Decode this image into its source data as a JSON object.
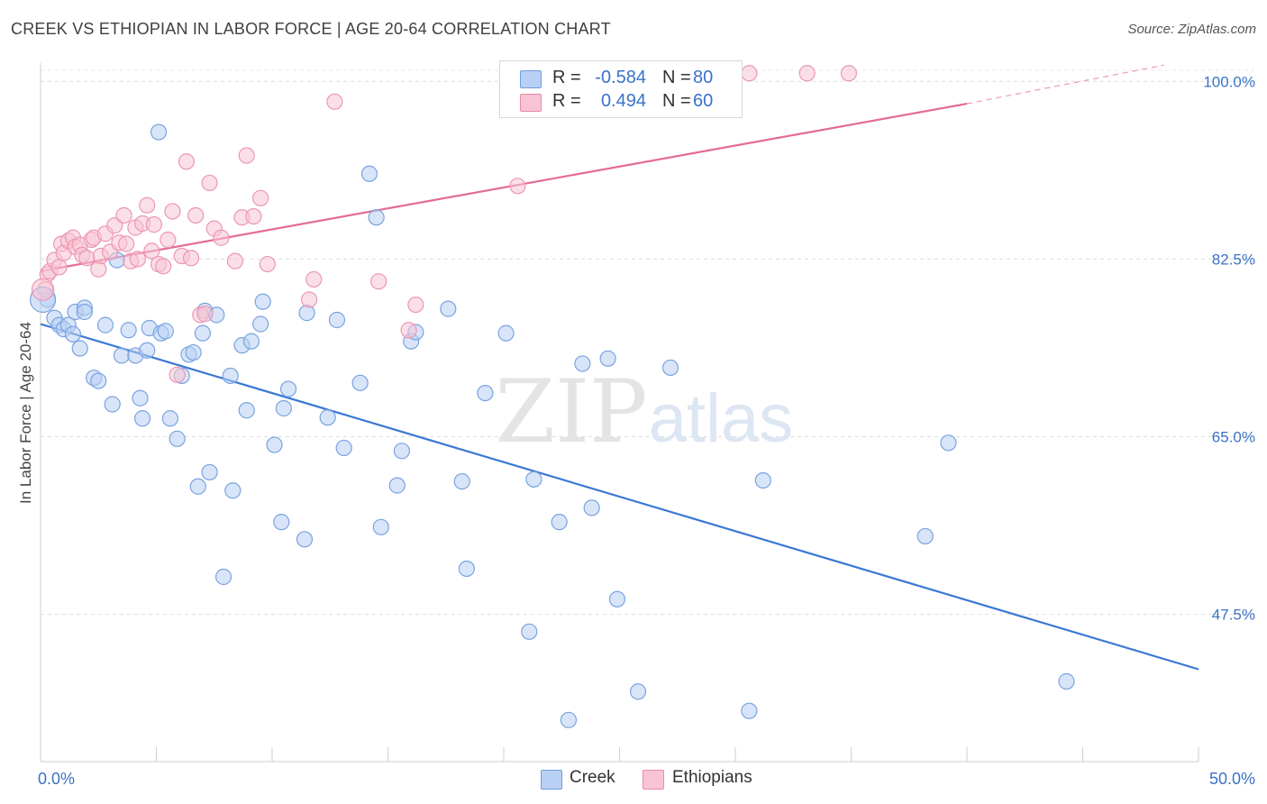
{
  "title": "CREEK VS ETHIOPIAN IN LABOR FORCE | AGE 20-64 CORRELATION CHART",
  "source": "Source: ZipAtlas.com",
  "watermark": {
    "zip": "ZIP",
    "atlas": "atlas"
  },
  "stats": {
    "r_label": "R =",
    "n_label": "N =",
    "creek": {
      "r": "-0.584",
      "n": "80"
    },
    "ethiopians": {
      "r": "0.494",
      "n": "60"
    }
  },
  "legend": {
    "creek": "Creek",
    "ethiopians": "Ethiopians"
  },
  "colors": {
    "creek": "#3b78d4",
    "ethiopians": "#e46b95",
    "creek_fill": "#b8d0f4",
    "ethiopians_fill": "#f8c4d4"
  },
  "chart_data": {
    "type": "scatter",
    "title": "CREEK VS ETHIOPIAN IN LABOR FORCE | AGE 20-64 CORRELATION CHART",
    "xlabel": "",
    "ylabel": "In Labor Force | Age 20-64",
    "xlim": [
      0,
      50
    ],
    "ylim": [
      33,
      101.8
    ],
    "x_tick_labels": [
      "0.0%",
      "50.0%"
    ],
    "y_ticks": [
      47.5,
      65.0,
      82.5,
      100.0
    ],
    "y_tick_labels": [
      "47.5%",
      "65.0%",
      "82.5%",
      "100.0%"
    ],
    "grid": true,
    "series": [
      {
        "name": "Creek",
        "points": [
          [
            0.3,
            78.5
          ],
          [
            0.6,
            76.7
          ],
          [
            0.8,
            76.0
          ],
          [
            1.0,
            75.6
          ],
          [
            1.2,
            76.0
          ],
          [
            1.4,
            75.1
          ],
          [
            1.5,
            77.3
          ],
          [
            1.7,
            73.7
          ],
          [
            1.9,
            77.7
          ],
          [
            1.9,
            77.3
          ],
          [
            2.3,
            70.8
          ],
          [
            2.5,
            70.5
          ],
          [
            2.8,
            76.0
          ],
          [
            3.1,
            68.2
          ],
          [
            3.3,
            82.4
          ],
          [
            3.5,
            73.0
          ],
          [
            3.8,
            75.5
          ],
          [
            4.1,
            73.0
          ],
          [
            4.3,
            68.8
          ],
          [
            4.4,
            66.8
          ],
          [
            4.6,
            73.5
          ],
          [
            4.7,
            75.7
          ],
          [
            5.1,
            95.0
          ],
          [
            5.2,
            75.2
          ],
          [
            5.4,
            75.4
          ],
          [
            5.6,
            66.8
          ],
          [
            5.9,
            64.8
          ],
          [
            6.1,
            71.0
          ],
          [
            6.4,
            73.1
          ],
          [
            6.6,
            73.3
          ],
          [
            6.8,
            60.1
          ],
          [
            7.0,
            75.2
          ],
          [
            7.1,
            77.4
          ],
          [
            7.3,
            61.5
          ],
          [
            7.6,
            77.0
          ],
          [
            7.9,
            51.2
          ],
          [
            8.2,
            71.0
          ],
          [
            8.3,
            59.7
          ],
          [
            8.7,
            74.0
          ],
          [
            8.9,
            67.6
          ],
          [
            9.1,
            74.4
          ],
          [
            9.5,
            76.1
          ],
          [
            9.6,
            78.3
          ],
          [
            10.1,
            64.2
          ],
          [
            10.4,
            56.6
          ],
          [
            10.5,
            67.8
          ],
          [
            10.7,
            69.7
          ],
          [
            11.4,
            54.9
          ],
          [
            11.5,
            77.2
          ],
          [
            12.4,
            66.9
          ],
          [
            12.8,
            76.5
          ],
          [
            13.1,
            63.9
          ],
          [
            13.8,
            70.3
          ],
          [
            14.2,
            90.9
          ],
          [
            14.5,
            86.6
          ],
          [
            14.7,
            56.1
          ],
          [
            15.4,
            60.2
          ],
          [
            15.6,
            63.6
          ],
          [
            16.0,
            74.4
          ],
          [
            16.2,
            75.3
          ],
          [
            17.6,
            77.6
          ],
          [
            18.2,
            60.6
          ],
          [
            18.4,
            52.0
          ],
          [
            19.2,
            69.3
          ],
          [
            20.1,
            75.2
          ],
          [
            21.1,
            45.8
          ],
          [
            21.3,
            60.8
          ],
          [
            22.4,
            56.6
          ],
          [
            22.8,
            37.1
          ],
          [
            23.4,
            72.2
          ],
          [
            23.8,
            58.0
          ],
          [
            24.5,
            72.7
          ],
          [
            24.9,
            49.0
          ],
          [
            25.8,
            39.9
          ],
          [
            27.2,
            71.8
          ],
          [
            30.6,
            38.0
          ],
          [
            31.2,
            60.7
          ],
          [
            38.2,
            55.2
          ],
          [
            39.2,
            64.4
          ],
          [
            44.3,
            40.9
          ]
        ]
      },
      {
        "name": "Ethiopians",
        "points": [
          [
            0.2,
            79.5
          ],
          [
            0.3,
            81.0
          ],
          [
            0.4,
            81.3
          ],
          [
            0.6,
            82.4
          ],
          [
            0.8,
            81.7
          ],
          [
            0.9,
            84.0
          ],
          [
            1.0,
            83.1
          ],
          [
            1.2,
            84.3
          ],
          [
            1.4,
            84.6
          ],
          [
            1.5,
            83.7
          ],
          [
            1.7,
            83.9
          ],
          [
            1.8,
            82.9
          ],
          [
            2.0,
            82.6
          ],
          [
            2.2,
            84.4
          ],
          [
            2.3,
            84.6
          ],
          [
            2.5,
            81.5
          ],
          [
            2.6,
            82.8
          ],
          [
            2.8,
            85.0
          ],
          [
            3.0,
            83.2
          ],
          [
            3.2,
            85.8
          ],
          [
            3.4,
            84.1
          ],
          [
            3.6,
            86.8
          ],
          [
            3.7,
            84.0
          ],
          [
            3.9,
            82.3
          ],
          [
            4.1,
            85.6
          ],
          [
            4.2,
            82.5
          ],
          [
            4.4,
            86.0
          ],
          [
            4.6,
            87.8
          ],
          [
            4.8,
            83.3
          ],
          [
            4.9,
            85.9
          ],
          [
            5.1,
            82.0
          ],
          [
            5.3,
            81.8
          ],
          [
            5.5,
            84.4
          ],
          [
            5.7,
            87.2
          ],
          [
            5.9,
            71.1
          ],
          [
            6.1,
            82.8
          ],
          [
            6.3,
            92.1
          ],
          [
            6.5,
            82.6
          ],
          [
            6.7,
            86.8
          ],
          [
            6.9,
            77.0
          ],
          [
            7.1,
            77.1
          ],
          [
            7.3,
            90.0
          ],
          [
            7.5,
            85.5
          ],
          [
            7.8,
            84.6
          ],
          [
            8.4,
            82.3
          ],
          [
            8.7,
            86.6
          ],
          [
            8.9,
            92.7
          ],
          [
            9.2,
            86.7
          ],
          [
            9.5,
            88.5
          ],
          [
            9.8,
            82.0
          ],
          [
            11.6,
            78.5
          ],
          [
            11.8,
            80.5
          ],
          [
            12.7,
            98.0
          ],
          [
            14.6,
            80.3
          ],
          [
            15.9,
            75.5
          ],
          [
            16.2,
            78.0
          ],
          [
            20.6,
            89.7
          ],
          [
            30.6,
            100.8
          ],
          [
            33.1,
            100.8
          ],
          [
            34.9,
            100.8
          ]
        ]
      }
    ],
    "trend_lines": [
      {
        "name": "Creek",
        "from": [
          0,
          76.1
        ],
        "to": [
          50,
          42.1
        ]
      },
      {
        "name": "Ethiopians",
        "from": [
          0,
          81.3
        ],
        "to": [
          40,
          97.8
        ],
        "dashed_to": [
          48.5,
          101.6
        ]
      }
    ]
  }
}
